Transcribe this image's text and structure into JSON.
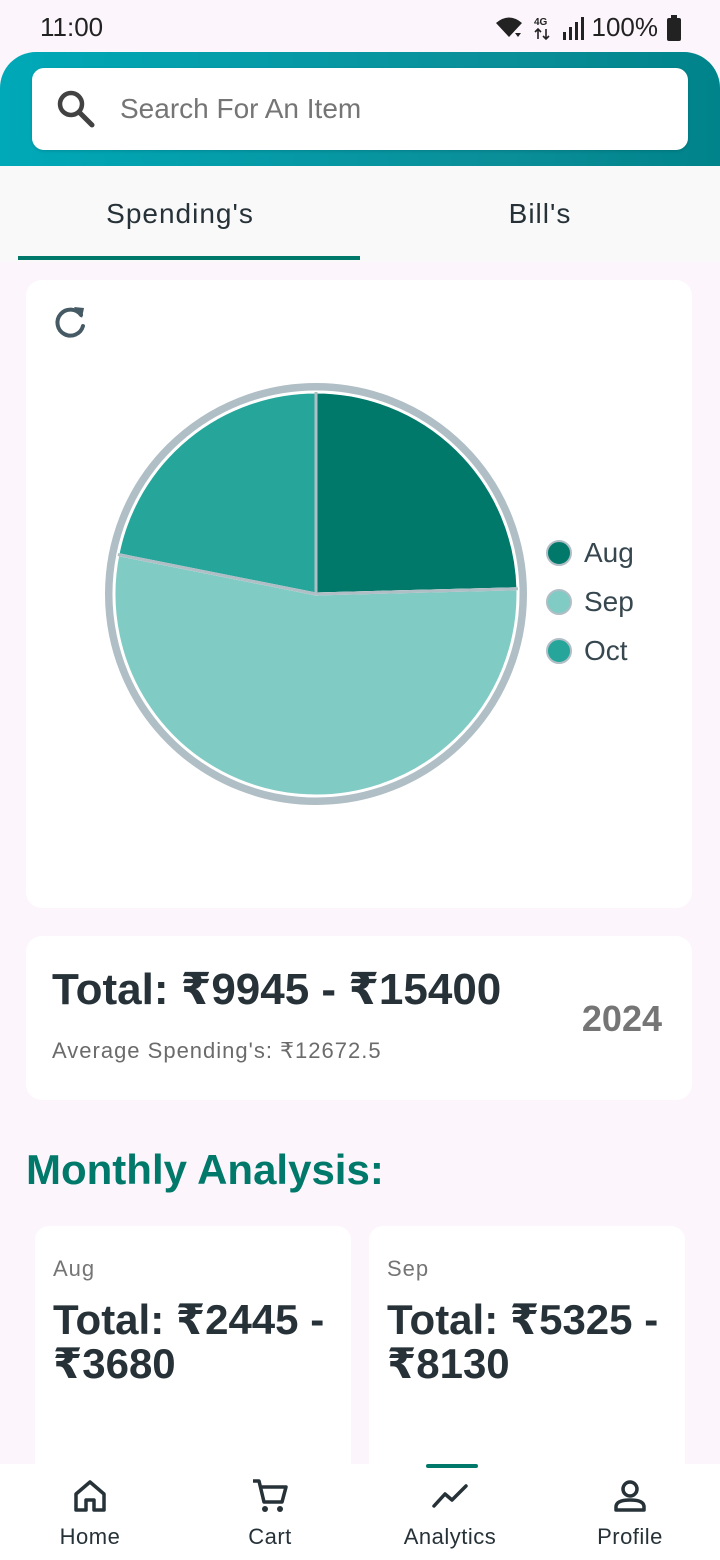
{
  "status_bar": {
    "time": "11:00",
    "network": "4G",
    "battery": "100%"
  },
  "search": {
    "placeholder": "Search For An Item"
  },
  "tabs": [
    {
      "label": "Spending's",
      "active": true
    },
    {
      "label": "Bill's",
      "active": false
    }
  ],
  "chart_data": {
    "type": "pie",
    "labels": [
      "Aug",
      "Sep",
      "Oct"
    ],
    "values": [
      2445,
      5325,
      2175
    ],
    "colors": [
      "#00796b",
      "#80cbc4",
      "#26a69a"
    ]
  },
  "summary": {
    "total": "Total: ₹9945 - ₹15400",
    "average": "Average Spending's: ₹12672.5",
    "year": "2024"
  },
  "monthly": {
    "title": "Monthly Analysis:",
    "cards": [
      {
        "month": "Aug",
        "total": "Total: ₹2445 - ₹3680"
      },
      {
        "month": "Sep",
        "total": "Total: ₹5325 - ₹8130"
      }
    ]
  },
  "nav": [
    {
      "label": "Home",
      "icon": "home-icon",
      "active": false
    },
    {
      "label": "Cart",
      "icon": "cart-icon",
      "active": false
    },
    {
      "label": "Analytics",
      "icon": "analytics-icon",
      "active": true
    },
    {
      "label": "Profile",
      "icon": "profile-icon",
      "active": false
    }
  ],
  "colors": {
    "accent": "#00796b",
    "header_start": "#00a9b8",
    "header_end": "#00838a"
  }
}
